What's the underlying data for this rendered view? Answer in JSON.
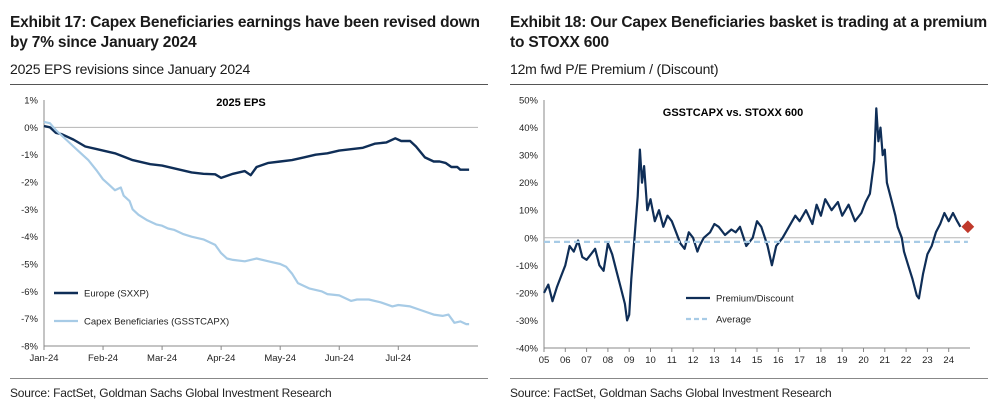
{
  "left_panel": {
    "title_line1": "Exhibit 17: Capex Beneficiaries earnings have been revised down",
    "title_line2": "by 7% since January 2024",
    "subtitle": "2025 EPS revisions since January 2024",
    "source": "Source: FactSet, Goldman Sachs Global Investment Research"
  },
  "right_panel": {
    "title_line1": "Exhibit 18: Our Capex Beneficiaries basket is trading at a premium",
    "title_line2": "to STOXX 600",
    "subtitle": "12m fwd P/E Premium / (Discount)",
    "source": "Source: FactSet, Goldman Sachs Global Investment Research"
  },
  "colors": {
    "dark_navy": "#0f2e57",
    "light_blue": "#a7cbe6",
    "marker_red": "#c0392b"
  },
  "chart_data": [
    {
      "type": "line",
      "title": "2025 EPS",
      "x_labels": [
        "Jan-24",
        "Feb-24",
        "Mar-24",
        "Apr-24",
        "May-24",
        "Jun-24",
        "Jul-24"
      ],
      "x_range": [
        0,
        7.35
      ],
      "y_ticks": [
        "1%",
        "0%",
        "-1%",
        "-2%",
        "-3%",
        "-4%",
        "-5%",
        "-6%",
        "-7%",
        "-8%"
      ],
      "ylim": [
        -8,
        1
      ],
      "legend_placement": "bottom-left",
      "series": [
        {
          "name": "Europe (SXXP)",
          "color": "#0f2e57",
          "points": [
            [
              0,
              0.05
            ],
            [
              0.1,
              0
            ],
            [
              0.2,
              -0.2
            ],
            [
              0.3,
              -0.25
            ],
            [
              0.5,
              -0.45
            ],
            [
              0.7,
              -0.7
            ],
            [
              0.9,
              -0.8
            ],
            [
              1.0,
              -0.85
            ],
            [
              1.2,
              -0.95
            ],
            [
              1.5,
              -1.2
            ],
            [
              1.8,
              -1.35
            ],
            [
              2.0,
              -1.4
            ],
            [
              2.2,
              -1.5
            ],
            [
              2.5,
              -1.65
            ],
            [
              2.7,
              -1.7
            ],
            [
              2.9,
              -1.72
            ],
            [
              3.0,
              -1.85
            ],
            [
              3.2,
              -1.7
            ],
            [
              3.4,
              -1.6
            ],
            [
              3.5,
              -1.75
            ],
            [
              3.6,
              -1.45
            ],
            [
              3.8,
              -1.3
            ],
            [
              4.0,
              -1.25
            ],
            [
              4.2,
              -1.2
            ],
            [
              4.4,
              -1.1
            ],
            [
              4.6,
              -1.0
            ],
            [
              4.8,
              -0.95
            ],
            [
              5.0,
              -0.85
            ],
            [
              5.2,
              -0.8
            ],
            [
              5.4,
              -0.75
            ],
            [
              5.6,
              -0.6
            ],
            [
              5.8,
              -0.55
            ],
            [
              5.95,
              -0.4
            ],
            [
              6.05,
              -0.5
            ],
            [
              6.2,
              -0.5
            ],
            [
              6.3,
              -0.7
            ],
            [
              6.45,
              -1.1
            ],
            [
              6.6,
              -1.25
            ],
            [
              6.7,
              -1.25
            ],
            [
              6.8,
              -1.3
            ],
            [
              6.9,
              -1.45
            ],
            [
              7.0,
              -1.45
            ],
            [
              7.05,
              -1.55
            ],
            [
              7.2,
              -1.55
            ]
          ]
        },
        {
          "name": "Capex Beneficiaries (GSSTCAPX)",
          "color": "#a7cbe6",
          "points": [
            [
              0,
              0.2
            ],
            [
              0.1,
              0.15
            ],
            [
              0.2,
              -0.1
            ],
            [
              0.3,
              -0.3
            ],
            [
              0.4,
              -0.5
            ],
            [
              0.5,
              -0.7
            ],
            [
              0.6,
              -0.9
            ],
            [
              0.75,
              -1.2
            ],
            [
              0.9,
              -1.6
            ],
            [
              1.0,
              -1.9
            ],
            [
              1.1,
              -2.1
            ],
            [
              1.2,
              -2.3
            ],
            [
              1.3,
              -2.2
            ],
            [
              1.35,
              -2.5
            ],
            [
              1.45,
              -2.7
            ],
            [
              1.5,
              -3.0
            ],
            [
              1.6,
              -3.2
            ],
            [
              1.75,
              -3.4
            ],
            [
              1.9,
              -3.55
            ],
            [
              2.0,
              -3.6
            ],
            [
              2.1,
              -3.7
            ],
            [
              2.2,
              -3.75
            ],
            [
              2.35,
              -3.9
            ],
            [
              2.5,
              -4.0
            ],
            [
              2.7,
              -4.1
            ],
            [
              2.8,
              -4.2
            ],
            [
              2.9,
              -4.3
            ],
            [
              3.0,
              -4.6
            ],
            [
              3.1,
              -4.8
            ],
            [
              3.2,
              -4.85
            ],
            [
              3.4,
              -4.9
            ],
            [
              3.6,
              -4.8
            ],
            [
              3.8,
              -4.9
            ],
            [
              4.0,
              -5.0
            ],
            [
              4.1,
              -5.1
            ],
            [
              4.2,
              -5.35
            ],
            [
              4.3,
              -5.7
            ],
            [
              4.5,
              -5.9
            ],
            [
              4.7,
              -6.0
            ],
            [
              4.8,
              -6.1
            ],
            [
              5.0,
              -6.15
            ],
            [
              5.2,
              -6.35
            ],
            [
              5.3,
              -6.3
            ],
            [
              5.5,
              -6.3
            ],
            [
              5.7,
              -6.4
            ],
            [
              5.9,
              -6.55
            ],
            [
              6.0,
              -6.5
            ],
            [
              6.2,
              -6.55
            ],
            [
              6.4,
              -6.7
            ],
            [
              6.6,
              -6.85
            ],
            [
              6.75,
              -6.9
            ],
            [
              6.85,
              -6.85
            ],
            [
              6.95,
              -7.15
            ],
            [
              7.05,
              -7.1
            ],
            [
              7.15,
              -7.2
            ],
            [
              7.2,
              -7.2
            ]
          ]
        }
      ]
    },
    {
      "type": "line",
      "title": "GSSTCAPX vs. STOXX 600",
      "x_labels": [
        "05",
        "06",
        "07",
        "08",
        "09",
        "10",
        "11",
        "12",
        "13",
        "14",
        "15",
        "16",
        "17",
        "18",
        "19",
        "20",
        "21",
        "22",
        "23",
        "24"
      ],
      "x_range": [
        2005,
        2025
      ],
      "y_ticks": [
        "50%",
        "40%",
        "30%",
        "20%",
        "10%",
        "0%",
        "-10%",
        "-20%",
        "-30%",
        "-40%"
      ],
      "ylim": [
        -40,
        50
      ],
      "legend_placement": "bottom-left",
      "average_value": -1.5,
      "latest_value": 4,
      "series": [
        {
          "name": "Premium/Discount",
          "color": "#0f2e57",
          "points": [
            [
              2005,
              -20
            ],
            [
              2005.2,
              -17
            ],
            [
              2005.4,
              -23
            ],
            [
              2005.6,
              -18
            ],
            [
              2005.8,
              -14
            ],
            [
              2006.0,
              -10
            ],
            [
              2006.2,
              -3
            ],
            [
              2006.4,
              -5
            ],
            [
              2006.6,
              -1
            ],
            [
              2006.8,
              -7
            ],
            [
              2007.0,
              -8
            ],
            [
              2007.2,
              -6
            ],
            [
              2007.4,
              -4
            ],
            [
              2007.6,
              -10
            ],
            [
              2007.8,
              -12
            ],
            [
              2008.0,
              -2
            ],
            [
              2008.2,
              -6
            ],
            [
              2008.4,
              -12
            ],
            [
              2008.6,
              -18
            ],
            [
              2008.8,
              -24
            ],
            [
              2008.9,
              -30
            ],
            [
              2009.0,
              -28
            ],
            [
              2009.1,
              -15
            ],
            [
              2009.25,
              0
            ],
            [
              2009.4,
              15
            ],
            [
              2009.5,
              32
            ],
            [
              2009.6,
              20
            ],
            [
              2009.7,
              26
            ],
            [
              2009.85,
              10
            ],
            [
              2010.0,
              14
            ],
            [
              2010.2,
              6
            ],
            [
              2010.4,
              10
            ],
            [
              2010.6,
              4
            ],
            [
              2010.8,
              8
            ],
            [
              2011.0,
              6
            ],
            [
              2011.2,
              2
            ],
            [
              2011.4,
              -2
            ],
            [
              2011.6,
              -4
            ],
            [
              2011.8,
              2
            ],
            [
              2012.0,
              0
            ],
            [
              2012.2,
              -5
            ],
            [
              2012.3,
              -3
            ],
            [
              2012.5,
              0
            ],
            [
              2012.8,
              2
            ],
            [
              2013.0,
              5
            ],
            [
              2013.2,
              4
            ],
            [
              2013.5,
              1
            ],
            [
              2013.8,
              3
            ],
            [
              2014.0,
              2
            ],
            [
              2014.2,
              4
            ],
            [
              2014.5,
              -3
            ],
            [
              2014.8,
              0
            ],
            [
              2015.0,
              6
            ],
            [
              2015.2,
              4
            ],
            [
              2015.5,
              -3
            ],
            [
              2015.7,
              -10
            ],
            [
              2015.9,
              -3
            ],
            [
              2016.2,
              0
            ],
            [
              2016.5,
              4
            ],
            [
              2016.8,
              8
            ],
            [
              2017.0,
              6
            ],
            [
              2017.3,
              10
            ],
            [
              2017.6,
              5
            ],
            [
              2017.8,
              12
            ],
            [
              2018.0,
              8
            ],
            [
              2018.2,
              14
            ],
            [
              2018.5,
              10
            ],
            [
              2018.8,
              13
            ],
            [
              2019.0,
              8
            ],
            [
              2019.3,
              12
            ],
            [
              2019.6,
              6
            ],
            [
              2019.9,
              9
            ],
            [
              2020.1,
              13
            ],
            [
              2020.3,
              16
            ],
            [
              2020.5,
              28
            ],
            [
              2020.6,
              47
            ],
            [
              2020.7,
              35
            ],
            [
              2020.8,
              40
            ],
            [
              2020.9,
              30
            ],
            [
              2021.0,
              32
            ],
            [
              2021.1,
              20
            ],
            [
              2021.3,
              14
            ],
            [
              2021.5,
              8
            ],
            [
              2021.6,
              4
            ],
            [
              2021.8,
              0
            ],
            [
              2021.9,
              -5
            ],
            [
              2022.1,
              -10
            ],
            [
              2022.3,
              -15
            ],
            [
              2022.5,
              -21
            ],
            [
              2022.6,
              -22
            ],
            [
              2022.8,
              -13
            ],
            [
              2023.0,
              -6
            ],
            [
              2023.2,
              -3
            ],
            [
              2023.4,
              2
            ],
            [
              2023.6,
              5
            ],
            [
              2023.8,
              9
            ],
            [
              2024.0,
              6
            ],
            [
              2024.2,
              9
            ],
            [
              2024.4,
              6
            ],
            [
              2024.55,
              4
            ]
          ]
        },
        {
          "name": "Average",
          "color": "#a7cbe6",
          "points": [
            [
              2005,
              -1.5
            ],
            [
              2024.9,
              -1.5
            ]
          ]
        }
      ]
    }
  ]
}
